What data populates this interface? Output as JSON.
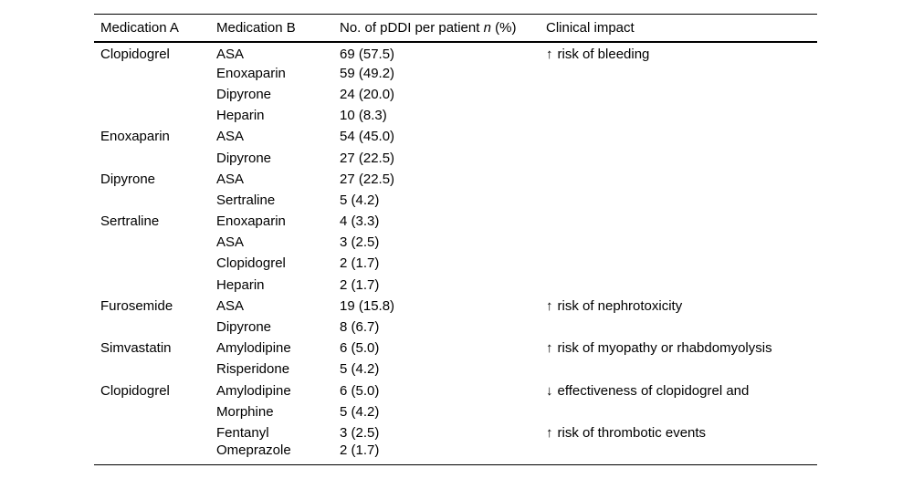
{
  "table": {
    "header": {
      "medication_a": "Medication A",
      "medication_b": "Medication B",
      "pddi_prefix": "No. of pDDI per patient ",
      "pddi_italic_n": "n",
      "pddi_suffix": " (%)",
      "clinical_impact": "Clinical impact"
    },
    "rows": [
      {
        "medication_a": "Clopidogrel",
        "medication_b": "ASA",
        "n_percent": "69 (57.5)",
        "impact_arrow": "↑",
        "impact_text": "risk of bleeding"
      },
      {
        "medication_a": "",
        "medication_b": "Enoxaparin",
        "n_percent": "59 (49.2)",
        "impact_arrow": "",
        "impact_text": ""
      },
      {
        "medication_a": "",
        "medication_b": "Dipyrone",
        "n_percent": "24 (20.0)",
        "impact_arrow": "",
        "impact_text": ""
      },
      {
        "medication_a": "",
        "medication_b": "Heparin",
        "n_percent": "10 (8.3)",
        "impact_arrow": "",
        "impact_text": ""
      },
      {
        "medication_a": "Enoxaparin",
        "medication_b": "ASA",
        "n_percent": "54 (45.0)",
        "impact_arrow": "",
        "impact_text": ""
      },
      {
        "medication_a": "",
        "medication_b": "Dipyrone",
        "n_percent": "27 (22.5)",
        "impact_arrow": "",
        "impact_text": ""
      },
      {
        "medication_a": "Dipyrone",
        "medication_b": "ASA",
        "n_percent": "27 (22.5)",
        "impact_arrow": "",
        "impact_text": ""
      },
      {
        "medication_a": "",
        "medication_b": "Sertraline",
        "n_percent": "5 (4.2)",
        "impact_arrow": "",
        "impact_text": ""
      },
      {
        "medication_a": "Sertraline",
        "medication_b": "Enoxaparin",
        "n_percent": "4 (3.3)",
        "impact_arrow": "",
        "impact_text": ""
      },
      {
        "medication_a": "",
        "medication_b": "ASA",
        "n_percent": "3 (2.5)",
        "impact_arrow": "",
        "impact_text": ""
      },
      {
        "medication_a": "",
        "medication_b": "Clopidogrel",
        "n_percent": "2 (1.7)",
        "impact_arrow": "",
        "impact_text": ""
      },
      {
        "medication_a": "",
        "medication_b": "Heparin",
        "n_percent": "2 (1.7)",
        "impact_arrow": "",
        "impact_text": ""
      },
      {
        "medication_a": "Furosemide",
        "medication_b": "ASA",
        "n_percent": "19 (15.8)",
        "impact_arrow": "↑",
        "impact_text": "risk of nephrotoxicity"
      },
      {
        "medication_a": "",
        "medication_b": "Dipyrone",
        "n_percent": "8 (6.7)",
        "impact_arrow": "",
        "impact_text": ""
      },
      {
        "medication_a": "Simvastatin",
        "medication_b": "Amylodipine",
        "n_percent": "6 (5.0)",
        "impact_arrow": "↑",
        "impact_text": "risk of myopathy or rhabdomyolysis"
      },
      {
        "medication_a": "",
        "medication_b": "Risperidone",
        "n_percent": "5 (4.2)",
        "impact_arrow": "",
        "impact_text": ""
      },
      {
        "medication_a": "Clopidogrel",
        "medication_b": "Amylodipine",
        "n_percent": "6 (5.0)",
        "impact_arrow": "↓",
        "impact_text": "effectiveness of clopidogrel and"
      },
      {
        "medication_a": "",
        "medication_b": "Morphine",
        "n_percent": "5 (4.2)",
        "impact_arrow": "",
        "impact_text": ""
      },
      {
        "medication_a": "",
        "medication_b": "Fentanyl",
        "n_percent": "3 (2.5)",
        "impact_arrow": "↑",
        "impact_text": "risk of thrombotic events"
      },
      {
        "medication_a": "",
        "medication_b": "Omeprazole",
        "n_percent": "2 (1.7)",
        "impact_arrow": "",
        "impact_text": ""
      }
    ]
  }
}
